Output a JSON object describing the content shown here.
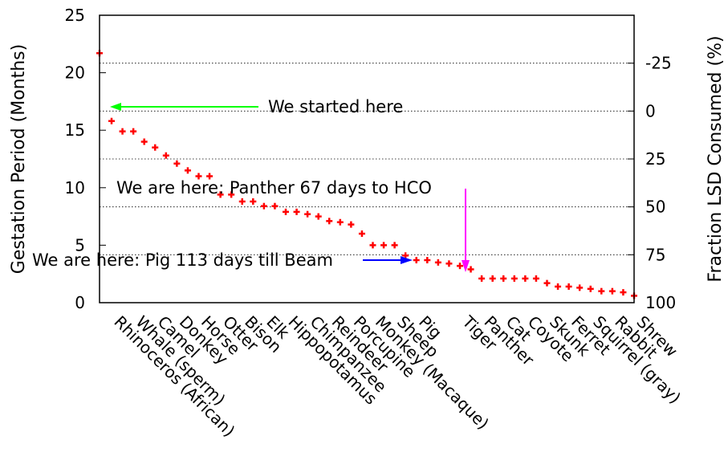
{
  "chart_data": {
    "type": "scatter",
    "ylabel": "Gestation Period (Months)",
    "y2label": "Fraction LSD Consumed (%)",
    "ylim": [
      0,
      25
    ],
    "y2lim": [
      -50,
      100
    ],
    "y2_reversed": true,
    "yticks": [
      "0",
      "5",
      "10",
      "15",
      "20",
      "25"
    ],
    "y2ticks": [
      "-25",
      "0",
      "25",
      "50",
      "75",
      "100"
    ],
    "grid": "dotted horizontal lines at right-axis ticks",
    "marker": "plus",
    "marker_color": "#ff0000",
    "categories": [
      "Rhinoceros (African)",
      "",
      "Whale (sperm)",
      "",
      "Camel",
      "",
      "Donkey",
      "",
      "Horse",
      "",
      "Otter",
      "",
      "Bison",
      "",
      "Elk",
      "",
      "Hippopotamus",
      "",
      "Chimpanzee",
      "",
      "Reindeer",
      "",
      "Porcupine",
      "",
      "Monkey (Macaque)",
      "",
      "Sheep",
      "",
      "Pig",
      "",
      "",
      "",
      "Tiger",
      "",
      "Panther",
      "",
      "Cat",
      "",
      "Coyote",
      "",
      "Skunk",
      "",
      "Ferret",
      "",
      "Squirrel (gray)",
      "",
      "Rabbit",
      "",
      "Shrew"
    ],
    "values": [
      15.8,
      14.9,
      14.9,
      14.0,
      13.5,
      12.8,
      12.1,
      11.5,
      11.0,
      11.0,
      9.4,
      9.4,
      8.8,
      8.8,
      8.4,
      8.4,
      7.9,
      7.9,
      7.7,
      7.5,
      7.1,
      7.0,
      6.8,
      6.0,
      5.0,
      5.0,
      5.0,
      4.1,
      3.7,
      3.7,
      3.5,
      3.4,
      3.2,
      2.9,
      2.1,
      2.1,
      2.1,
      2.1,
      2.1,
      2.1,
      1.7,
      1.4,
      1.4,
      1.3,
      1.2,
      1.0,
      1.0,
      0.9,
      0.6
    ],
    "extra_point": 21.7,
    "annotations": [
      {
        "text": "We started here",
        "color": "#00ff00",
        "y": 17.0
      },
      {
        "text": "We are here: Panther 67 days to HCO",
        "color": "#ff00ff"
      },
      {
        "text": "We are here: Pig 113 days till Beam",
        "color": "#0000ff",
        "y": 3.7
      }
    ]
  }
}
